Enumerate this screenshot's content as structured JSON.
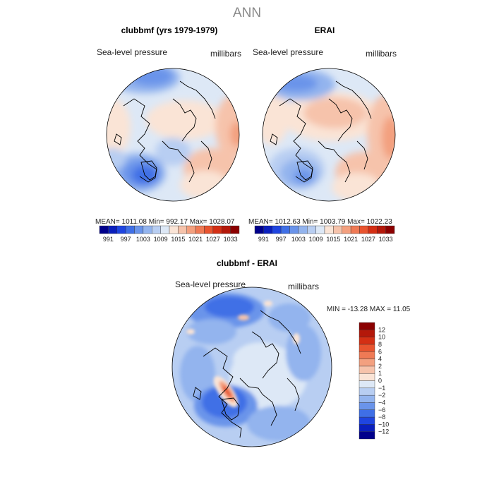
{
  "title": "ANN",
  "panels": [
    {
      "title": "clubbmf (yrs 1979-1979)",
      "variable": "Sea-level pressure",
      "units": "millibars",
      "stats": "MEAN=  1011.08    Min=  992.17    Max=  1028.07"
    },
    {
      "title": "ERAI",
      "variable": "Sea-level pressure",
      "units": "millibars",
      "stats": "MEAN=  1012.63    Min=  1003.79    Max=  1022.23"
    },
    {
      "title": "clubbmf - ERAI",
      "variable": "Sea-level pressure",
      "units": "millibars",
      "stats": "MIN = -13.28  MAX =   11.05"
    }
  ],
  "colorbar_horizontal": {
    "colors": [
      "#00008b",
      "#0a1fbd",
      "#1f45e0",
      "#3f6fe6",
      "#6a94ea",
      "#93b4ee",
      "#b8cef2",
      "#dde8f6",
      "#fae4d6",
      "#f6c3ab",
      "#f3a07f",
      "#ef7a55",
      "#e8542f",
      "#d42f14",
      "#b4180a",
      "#8b0000"
    ],
    "labels": [
      "991",
      "997",
      "1003",
      "1009",
      "1015",
      "1021",
      "1027",
      "1033"
    ]
  },
  "colorbar_vertical": {
    "colors": [
      "#00008b",
      "#0a1fbd",
      "#1f45e0",
      "#3f6fe6",
      "#6a94ea",
      "#93b4ee",
      "#b8cef2",
      "#dde8f6",
      "#fae4d6",
      "#f6c3ab",
      "#f3a07f",
      "#ef7a55",
      "#e8542f",
      "#d42f14",
      "#b4180a",
      "#8b0000"
    ],
    "labels": [
      "12",
      "10",
      "8",
      "6",
      "4",
      "2",
      "1",
      "0",
      "−1",
      "−2",
      "−4",
      "−6",
      "−8",
      "−10",
      "−12"
    ]
  },
  "chart_data": [
    {
      "type": "heatmap",
      "title": "clubbmf (yrs 1979-1979)",
      "variable": "Sea-level pressure",
      "units": "millibars",
      "projection": "north polar stereographic",
      "mean": 1011.08,
      "min": 992.17,
      "max": 1028.07,
      "contour_levels": [
        991,
        994,
        997,
        1000,
        1003,
        1006,
        1009,
        1012,
        1015,
        1018,
        1021,
        1024,
        1027,
        1030,
        1033
      ]
    },
    {
      "type": "heatmap",
      "title": "ERAI",
      "variable": "Sea-level pressure",
      "units": "millibars",
      "projection": "north polar stereographic",
      "mean": 1012.63,
      "min": 1003.79,
      "max": 1022.23,
      "contour_levels": [
        991,
        994,
        997,
        1000,
        1003,
        1006,
        1009,
        1012,
        1015,
        1018,
        1021,
        1024,
        1027,
        1030,
        1033
      ]
    },
    {
      "type": "heatmap",
      "title": "clubbmf - ERAI",
      "variable": "Sea-level pressure",
      "units": "millibars",
      "projection": "north polar stereographic",
      "min": -13.28,
      "max": 11.05,
      "contour_levels": [
        -12,
        -10,
        -8,
        -6,
        -4,
        -2,
        -1,
        0,
        1,
        2,
        4,
        6,
        8,
        10,
        12
      ]
    }
  ]
}
